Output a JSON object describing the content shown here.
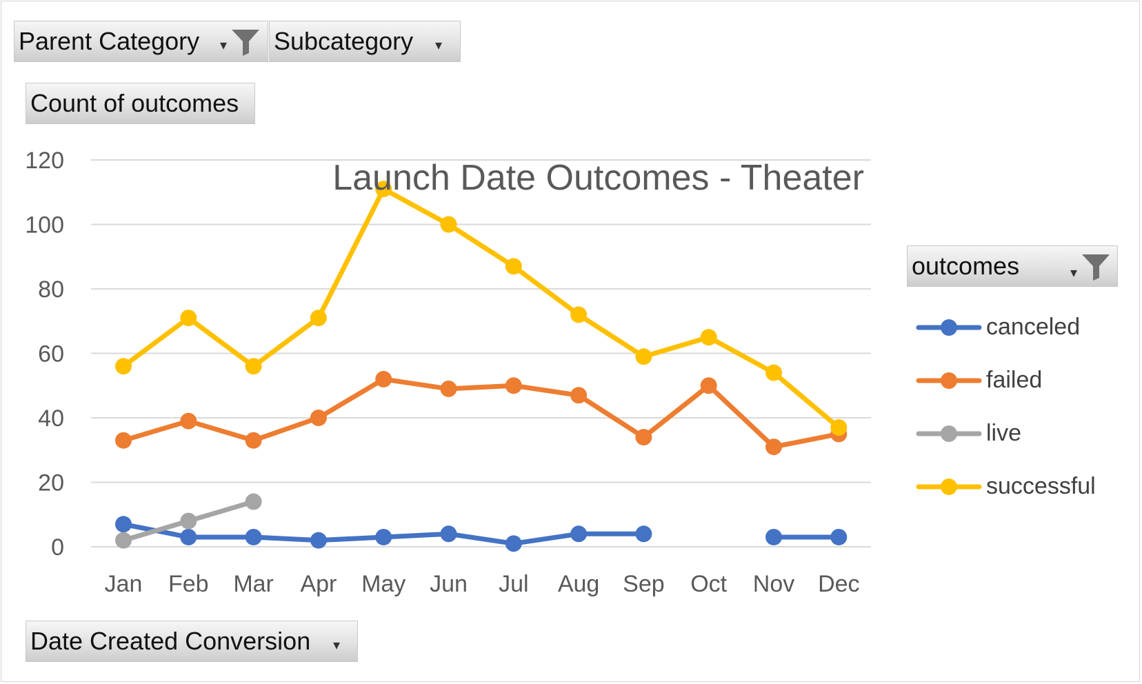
{
  "filters": {
    "parent_category": "Parent Category",
    "subcategory": "Subcategory",
    "values_field": "Count of outcomes",
    "axis_field": "Date Created Conversion",
    "legend_field": "outcomes"
  },
  "chart_data": {
    "type": "line",
    "title": "Launch Date Outcomes - Theater",
    "categories": [
      "Jan",
      "Feb",
      "Mar",
      "Apr",
      "May",
      "Jun",
      "Jul",
      "Aug",
      "Sep",
      "Oct",
      "Nov",
      "Dec"
    ],
    "ylim": [
      0,
      120
    ],
    "yticks": [
      0,
      20,
      40,
      60,
      80,
      100,
      120
    ],
    "grid": true,
    "legend_position": "right",
    "series": [
      {
        "name": "canceled",
        "color": "#4472c4",
        "values": [
          7,
          3,
          3,
          2,
          3,
          4,
          1,
          4,
          4,
          null,
          3,
          3
        ]
      },
      {
        "name": "failed",
        "color": "#ed7d31",
        "values": [
          33,
          39,
          33,
          40,
          52,
          49,
          50,
          47,
          34,
          50,
          31,
          35
        ]
      },
      {
        "name": "live",
        "color": "#a5a5a5",
        "values": [
          2,
          8,
          14,
          null,
          null,
          null,
          null,
          null,
          null,
          null,
          null,
          null
        ]
      },
      {
        "name": "successful",
        "color": "#ffc000",
        "values": [
          56,
          71,
          56,
          71,
          111,
          100,
          87,
          72,
          59,
          65,
          54,
          37
        ]
      }
    ]
  }
}
